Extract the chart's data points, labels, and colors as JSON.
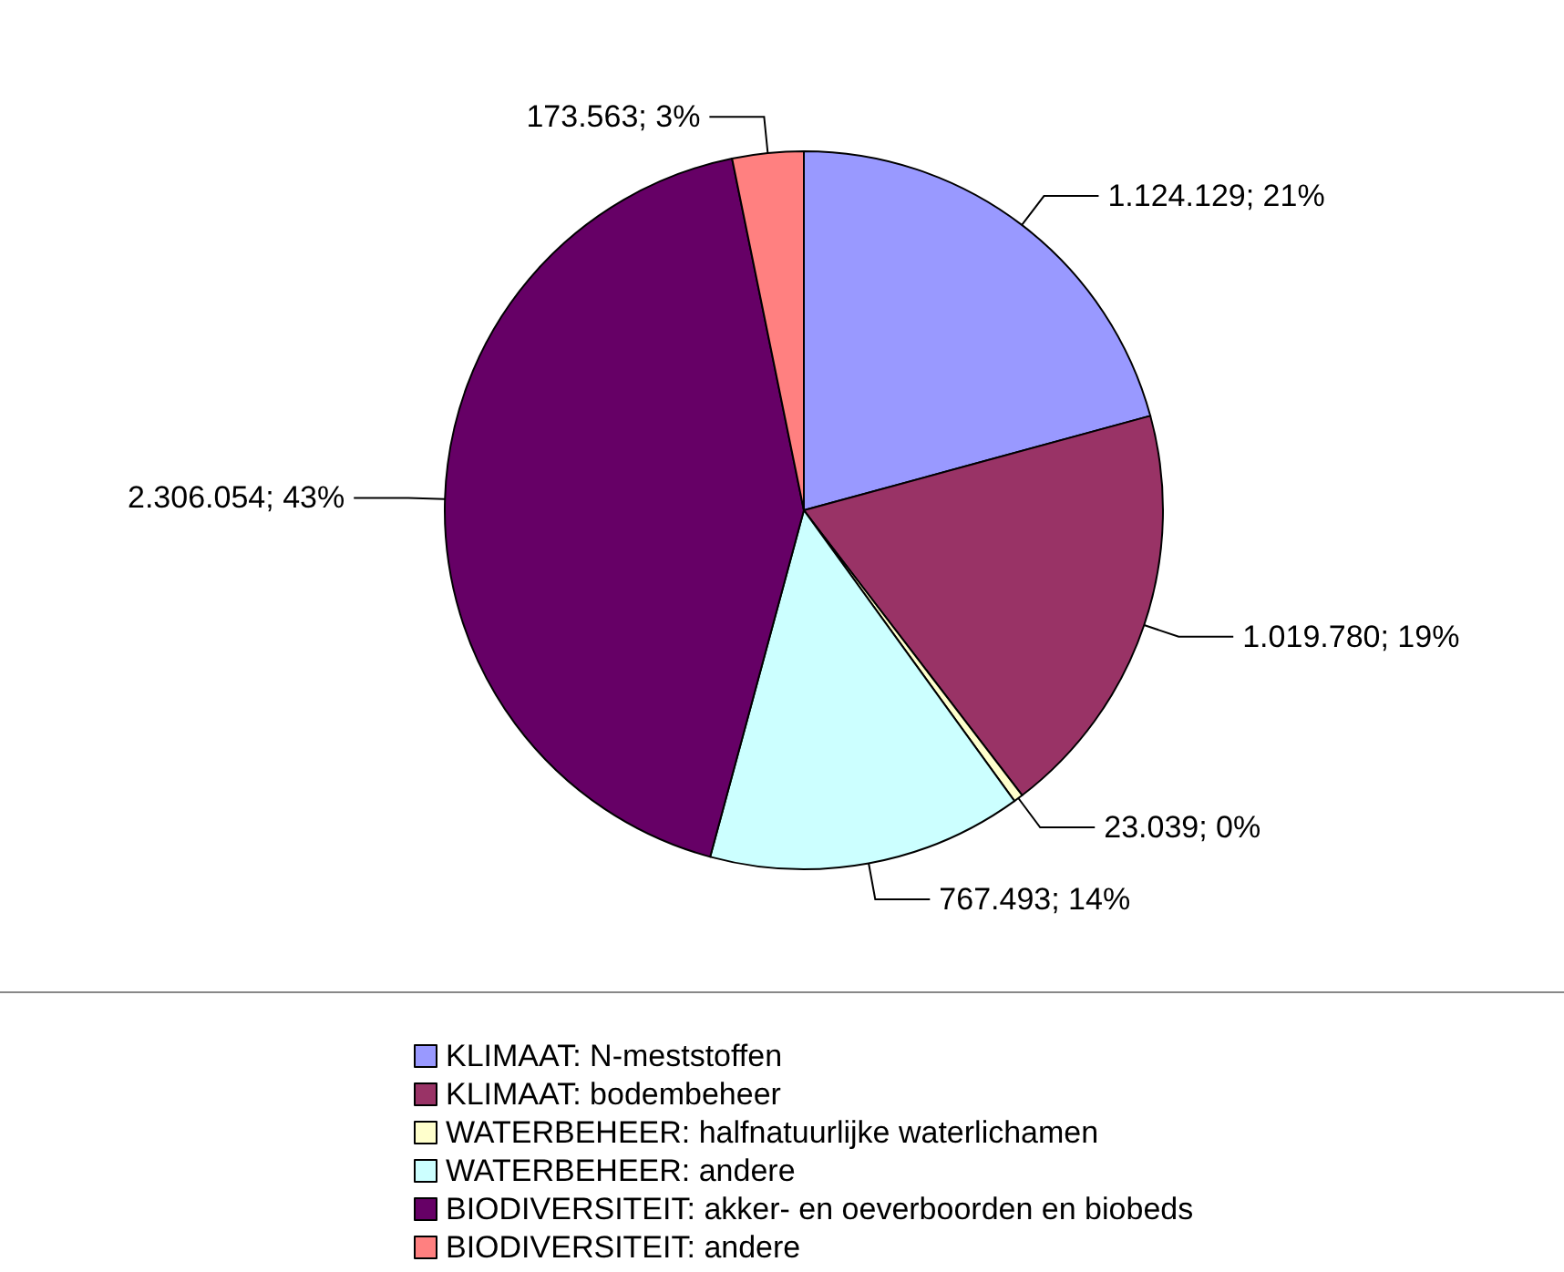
{
  "chart_data": {
    "type": "pie",
    "categories": [
      "KLIMAAT: N-meststoffen",
      "KLIMAAT: bodembeheer",
      "WATERBEHEER: halfnatuurlijke waterlichamen",
      "WATERBEHEER: andere",
      "BIODIVERSITEIT: akker- en oeverboorden en biobeds",
      "BIODIVERSITEIT: andere"
    ],
    "values": [
      1124129,
      1019780,
      23039,
      767493,
      2306054,
      173563
    ],
    "colors": [
      "#9999ff",
      "#993366",
      "#ffffcc",
      "#ccffff",
      "#660066",
      "#ff8080"
    ],
    "value_labels": [
      "1.124.129; 21%",
      "1.019.780; 19%",
      "23.039; 0%",
      "767.493; 14%",
      "2.306.054; 43%",
      "173.563; 3%"
    ],
    "legend": "bottom"
  }
}
